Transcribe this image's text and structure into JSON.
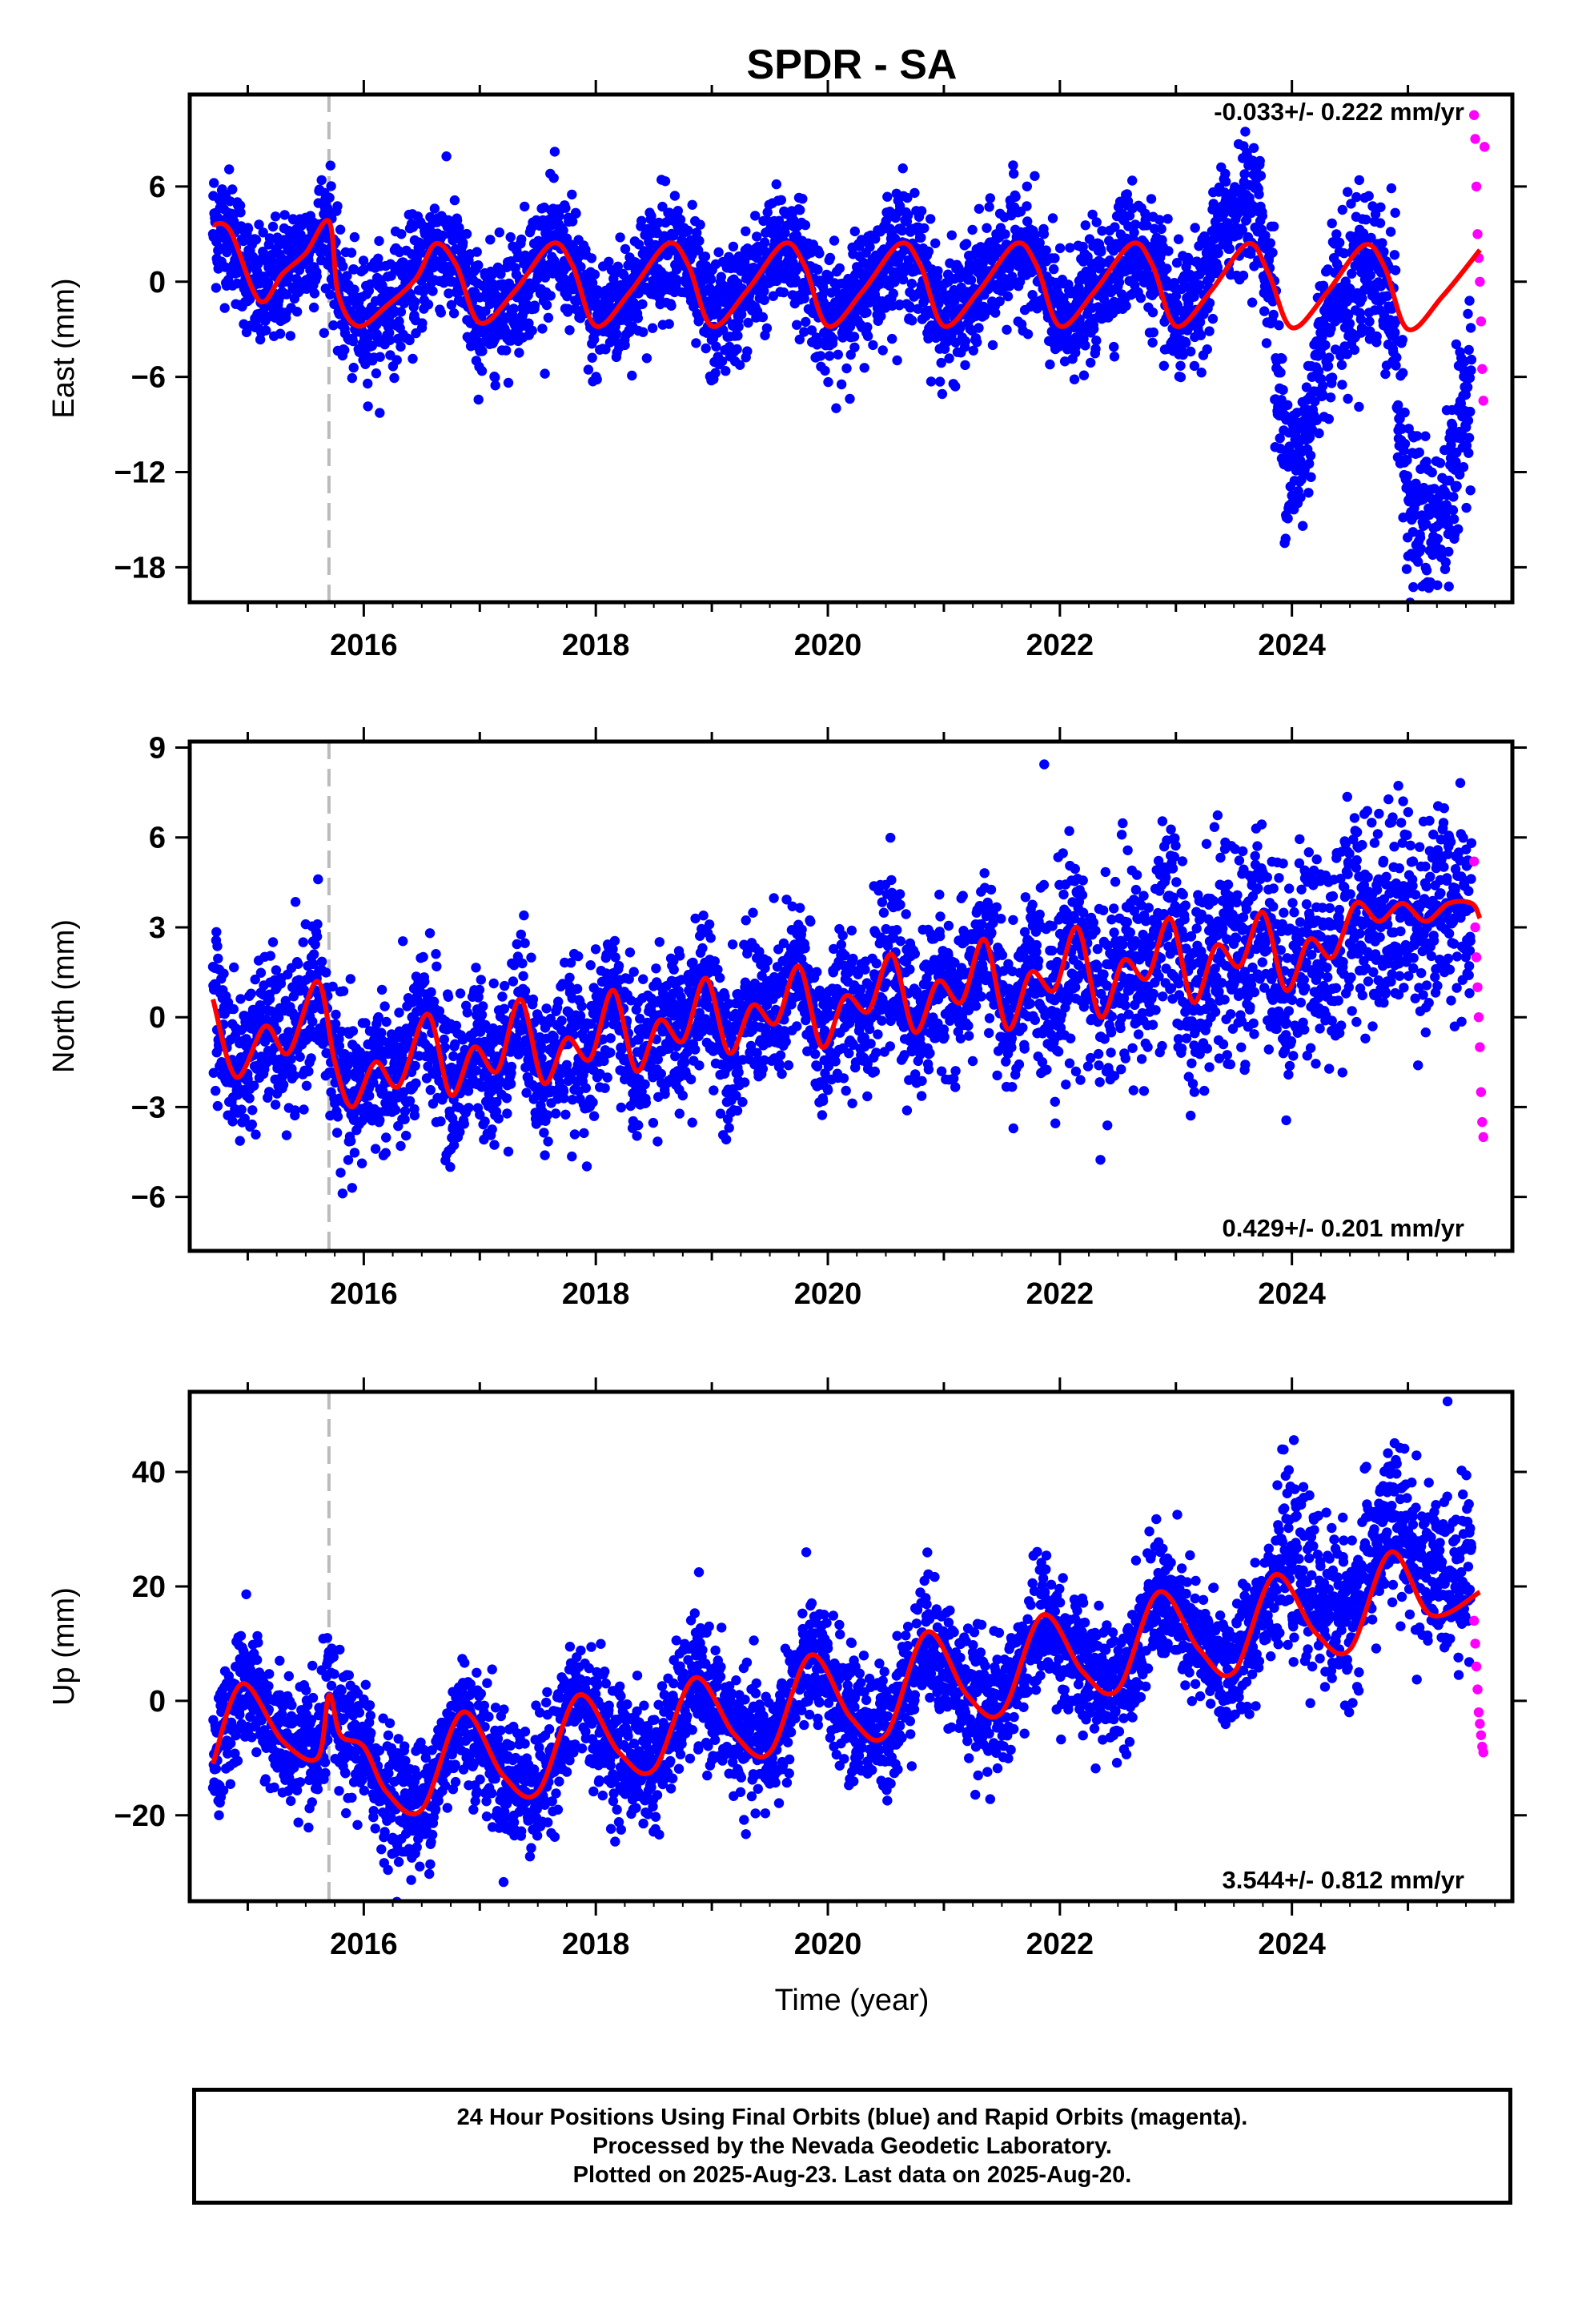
{
  "title": "SPDR - SA",
  "xlabel": "Time (year)",
  "footer": {
    "line1": "24 Hour Positions Using Final Orbits (blue) and Rapid Orbits (magenta).",
    "line2": "Processed by the Nevada Geodetic Laboratory.",
    "line3": "Plotted on 2025-Aug-23. Last data on 2025-Aug-20."
  },
  "colors": {
    "final_orbits": "#0000ff",
    "rapid_orbits": "#ff00ff",
    "model_fit": "#ff0000",
    "equipment_change_line": "#bbbbbb"
  },
  "chart_data": [
    {
      "type": "scatter",
      "panel": "east",
      "ylabel": "East (mm)",
      "rate_text": "-0.033+/- 0.222 mm/yr",
      "xlim": [
        2014.5,
        2025.9
      ],
      "ylim": [
        -20.2,
        11.8
      ],
      "x_ticks": [
        "2016",
        "2018",
        "2020",
        "2022",
        "2024"
      ],
      "y_ticks": [
        6,
        0,
        -6,
        -12,
        -18
      ],
      "y_tick_labels": [
        "6",
        "0",
        "−6",
        "−12",
        "−18"
      ],
      "equipment_change_year": 2015.7,
      "final_orbit_summary": {
        "start_year": 2014.7,
        "end_year": 2025.55,
        "segments": [
          {
            "x": [
              2014.7,
              2023.7
            ],
            "description": "seasonal oscillation about fit, scatter ~2 mm"
          },
          {
            "x": [
              2023.9,
              2025.55
            ],
            "description": "large negative excursions to about -19 mm"
          }
        ]
      },
      "rapid_orbit_points": {
        "x": [
          2025.57,
          2025.58,
          2025.59,
          2025.6,
          2025.61,
          2025.62,
          2025.63,
          2025.64,
          2025.65,
          2025.66
        ],
        "y": [
          10.5,
          9.0,
          6.0,
          3.0,
          1.5,
          0.0,
          -2.5,
          -5.5,
          -7.5,
          8.5
        ]
      },
      "fit_line": {
        "x": [
          2014.7,
          2014.85,
          2015.1,
          2015.3,
          2015.5,
          2015.7,
          2015.78,
          2015.95,
          2016.2,
          2016.45,
          2016.62,
          2016.8,
          2017.0,
          2017.3,
          2017.62,
          2017.8,
          2018.0,
          2018.3,
          2018.62,
          2018.8,
          2019.0,
          2019.3,
          2019.62,
          2019.8,
          2020.0,
          2020.3,
          2020.62,
          2020.8,
          2021.0,
          2021.3,
          2021.62,
          2021.8,
          2022.0,
          2022.3,
          2022.62,
          2022.8,
          2023.0,
          2023.3,
          2023.62,
          2023.8,
          2024.0,
          2024.3,
          2024.62,
          2024.8,
          2025.0,
          2025.3,
          2025.62
        ],
        "y": [
          3.6,
          3.2,
          -1.2,
          0.5,
          1.8,
          3.8,
          -0.8,
          -2.8,
          -1.5,
          0.2,
          2.4,
          1.0,
          -2.6,
          -0.6,
          2.4,
          1.0,
          -2.8,
          -0.6,
          2.4,
          1.0,
          -2.8,
          -0.6,
          2.4,
          1.0,
          -2.8,
          -0.6,
          2.4,
          1.0,
          -2.8,
          -0.6,
          2.4,
          1.0,
          -2.8,
          -0.6,
          2.4,
          1.0,
          -2.8,
          -0.6,
          2.4,
          0.5,
          -2.9,
          -0.7,
          2.3,
          0.9,
          -3.0,
          -0.9,
          2.0
        ]
      }
    },
    {
      "type": "scatter",
      "panel": "north",
      "ylabel": "North (mm)",
      "rate_text": "0.429+/- 0.201 mm/yr",
      "xlim": [
        2014.5,
        2025.9
      ],
      "ylim": [
        -7.8,
        9.2
      ],
      "x_ticks": [
        "2016",
        "2018",
        "2020",
        "2022",
        "2024"
      ],
      "y_ticks": [
        9,
        6,
        3,
        0,
        -3,
        -6
      ],
      "y_tick_labels": [
        "9",
        "6",
        "3",
        "0",
        "−3",
        "−6"
      ],
      "equipment_change_year": 2015.7,
      "final_orbit_summary": {
        "start_year": 2014.7,
        "end_year": 2025.55,
        "description": "upward trend with semiannual oscillation, scatter ~1.5 mm, extremes -7 to 9 mm"
      },
      "rapid_orbit_points": {
        "x": [
          2025.57,
          2025.58,
          2025.59,
          2025.6,
          2025.61,
          2025.62,
          2025.63,
          2025.64,
          2025.65
        ],
        "y": [
          5.2,
          3.0,
          2.0,
          1.0,
          0.0,
          -1.0,
          -2.5,
          -3.5,
          -4.0
        ]
      },
      "fit_line": {
        "x": [
          2014.7,
          2014.9,
          2015.15,
          2015.35,
          2015.6,
          2015.75,
          2015.9,
          2016.1,
          2016.3,
          2016.55,
          2016.75,
          2016.95,
          2017.15,
          2017.35,
          2017.55,
          2017.75,
          2017.95,
          2018.15,
          2018.35,
          2018.55,
          2018.75,
          2018.95,
          2019.15,
          2019.35,
          2019.55,
          2019.75,
          2019.95,
          2020.15,
          2020.35,
          2020.55,
          2020.75,
          2020.95,
          2021.15,
          2021.35,
          2021.55,
          2021.75,
          2021.95,
          2022.15,
          2022.35,
          2022.55,
          2022.75,
          2022.95,
          2023.15,
          2023.35,
          2023.55,
          2023.75,
          2023.95,
          2024.15,
          2024.35,
          2024.55,
          2024.75,
          2024.95,
          2025.15,
          2025.35,
          2025.55,
          2025.62
        ],
        "y": [
          0.6,
          -2.0,
          -0.3,
          -1.2,
          1.2,
          -1.5,
          -3.0,
          -1.5,
          -2.3,
          0.1,
          -2.6,
          -1.0,
          -1.8,
          0.6,
          -2.2,
          -0.7,
          -1.4,
          0.9,
          -1.8,
          -0.1,
          -0.8,
          1.3,
          -1.2,
          0.4,
          -0.2,
          1.7,
          -1.0,
          0.7,
          0.2,
          2.1,
          -0.5,
          1.2,
          0.5,
          2.6,
          -0.4,
          1.5,
          0.9,
          3.0,
          0.0,
          1.9,
          1.3,
          3.3,
          0.5,
          2.4,
          1.7,
          3.5,
          0.9,
          2.6,
          2.0,
          3.8,
          3.2,
          3.8,
          3.2,
          3.8,
          3.8,
          3.3
        ]
      }
    },
    {
      "type": "scatter",
      "panel": "up",
      "ylabel": "Up (mm)",
      "rate_text": "3.544+/- 0.812 mm/yr",
      "xlim": [
        2014.5,
        2025.9
      ],
      "ylim": [
        -35,
        54
      ],
      "x_ticks": [
        "2016",
        "2018",
        "2020",
        "2022",
        "2024"
      ],
      "y_ticks": [
        40,
        20,
        0,
        -20
      ],
      "y_tick_labels": [
        "40",
        "20",
        "0",
        "−20"
      ],
      "equipment_change_year": 2015.7,
      "final_orbit_summary": {
        "start_year": 2014.7,
        "end_year": 2025.55,
        "description": "annual oscillation with upward trend, scatter ~6 mm, extremes -33 to 52 mm"
      },
      "rapid_orbit_points": {
        "x": [
          2025.57,
          2025.58,
          2025.59,
          2025.6,
          2025.61,
          2025.62,
          2025.63,
          2025.64,
          2025.65
        ],
        "y": [
          14,
          10,
          6,
          2,
          -2,
          -4,
          -6,
          -8,
          -9
        ]
      },
      "fit_line": {
        "x": [
          2014.7,
          2014.95,
          2015.3,
          2015.6,
          2015.7,
          2015.8,
          2016.0,
          2016.2,
          2016.5,
          2016.85,
          2017.2,
          2017.5,
          2017.85,
          2018.2,
          2018.5,
          2018.85,
          2019.2,
          2019.5,
          2019.85,
          2020.2,
          2020.5,
          2020.85,
          2021.2,
          2021.5,
          2021.85,
          2022.2,
          2022.5,
          2022.85,
          2023.2,
          2023.5,
          2023.85,
          2024.2,
          2024.5,
          2024.85,
          2025.2,
          2025.62
        ],
        "y": [
          -11,
          3,
          -7,
          -10,
          1,
          -6,
          -8,
          -16,
          -19,
          -2,
          -13,
          -16,
          1,
          -9,
          -12,
          4,
          -6,
          -9,
          8,
          -3,
          -6,
          12,
          1,
          -2,
          15,
          5,
          2,
          19,
          9,
          5,
          22,
          12,
          9,
          26,
          15,
          19
        ]
      }
    }
  ]
}
